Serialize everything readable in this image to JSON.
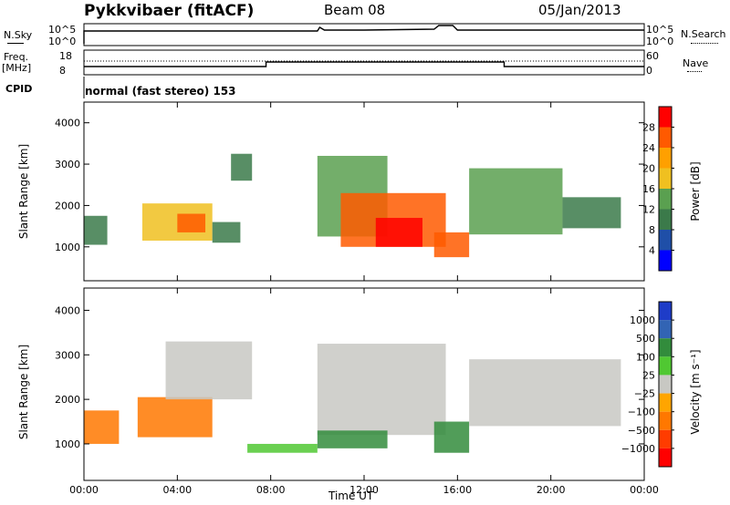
{
  "header": {
    "radar_title": "Pykkvibaer (fitACF)",
    "beam": "Beam 08",
    "date": "05/Jan/2013",
    "mode": "normal (fast stereo) 153"
  },
  "status_panels": {
    "nsky_label": "N.Sky",
    "nsky_ticks": [
      "10^5",
      "10^0"
    ],
    "nsearch_label": "N.Search",
    "nsearch_ticks": [
      "10^5",
      "10^0"
    ],
    "freq_label_line1": "Freq.",
    "freq_label_line2": "[MHz]",
    "freq_ticks": [
      "18",
      "8"
    ],
    "nave_label": "Nave",
    "nave_ticks": [
      "60",
      "0"
    ],
    "cpid_label": "CPID"
  },
  "colors": {
    "power_scale": [
      "#0000ff",
      "#1f4fa8",
      "#3b7a4a",
      "#5aa050",
      "#f0c020",
      "#ffa000",
      "#ff5a00",
      "#ff0000"
    ],
    "velocity_scale": [
      "#1e3cc8",
      "#3264b4",
      "#328c3c",
      "#50c832",
      "#c8c8c3",
      "#ffa500",
      "#ff7800",
      "#ff3c00",
      "#ff0000"
    ]
  },
  "chart_data": [
    {
      "type": "heatmap",
      "panel": "power",
      "ylabel": "Slant Range [km]",
      "xlabel": "",
      "ylim": [
        180,
        4500
      ],
      "x_ticks": [
        "00:00",
        "04:00",
        "08:00",
        "12:00",
        "16:00",
        "20:00",
        "00:00"
      ],
      "y_ticks": [
        1000,
        2000,
        3000,
        4000
      ],
      "colorbar": {
        "label": "Power [dB]",
        "range": [
          0,
          32
        ],
        "ticks": [
          4,
          8,
          12,
          16,
          20,
          24,
          28
        ]
      },
      "regions": [
        {
          "t_start": 0.0,
          "t_end": 1.0,
          "range_start": 1050,
          "range_end": 1750,
          "level": 8
        },
        {
          "t_start": 2.5,
          "t_end": 5.5,
          "range_start": 1150,
          "range_end": 2050,
          "level": 16
        },
        {
          "t_start": 4.0,
          "t_end": 5.2,
          "range_start": 1350,
          "range_end": 1800,
          "level": 24
        },
        {
          "t_start": 5.5,
          "t_end": 6.7,
          "range_start": 1100,
          "range_end": 1600,
          "level": 10
        },
        {
          "t_start": 6.3,
          "t_end": 7.2,
          "range_start": 2600,
          "range_end": 3250,
          "level": 10
        },
        {
          "t_start": 10.0,
          "t_end": 13.0,
          "range_start": 1250,
          "range_end": 3200,
          "level": 12
        },
        {
          "t_start": 11.0,
          "t_end": 15.5,
          "range_start": 1000,
          "range_end": 2300,
          "level": 24
        },
        {
          "t_start": 12.5,
          "t_end": 14.5,
          "range_start": 1000,
          "range_end": 1700,
          "level": 28
        },
        {
          "t_start": 15.0,
          "t_end": 16.5,
          "range_start": 750,
          "range_end": 1350,
          "level": 24
        },
        {
          "t_start": 16.5,
          "t_end": 20.5,
          "range_start": 1300,
          "range_end": 2900,
          "level": 14
        },
        {
          "t_start": 20.5,
          "t_end": 23.0,
          "range_start": 1450,
          "range_end": 2200,
          "level": 8
        }
      ]
    },
    {
      "type": "heatmap",
      "panel": "velocity",
      "ylabel": "Slant Range [km]",
      "xlabel": "Time UT",
      "ylim": [
        180,
        4500
      ],
      "x_ticks": [
        "00:00",
        "04:00",
        "08:00",
        "12:00",
        "16:00",
        "20:00",
        "00:00"
      ],
      "y_ticks": [
        1000,
        2000,
        3000,
        4000
      ],
      "colorbar": {
        "label": "Velocity [m s⁻¹]",
        "ticks": [
          "1000",
          "500",
          "100",
          "25",
          "−25",
          "−100",
          "−500",
          "−1000"
        ]
      },
      "regions": [
        {
          "t_start": 0.0,
          "t_end": 1.5,
          "range_start": 1000,
          "range_end": 1750,
          "velocity": -300
        },
        {
          "t_start": 2.3,
          "t_end": 5.5,
          "range_start": 1150,
          "range_end": 2050,
          "velocity": -300
        },
        {
          "t_start": 3.5,
          "t_end": 7.2,
          "range_start": 2000,
          "range_end": 3300,
          "velocity": 0
        },
        {
          "t_start": 7.0,
          "t_end": 10.0,
          "range_start": 800,
          "range_end": 1000,
          "velocity": 50
        },
        {
          "t_start": 10.0,
          "t_end": 15.5,
          "range_start": 1200,
          "range_end": 3250,
          "velocity": 0
        },
        {
          "t_start": 10.0,
          "t_end": 13.0,
          "range_start": 900,
          "range_end": 1300,
          "velocity": 100
        },
        {
          "t_start": 15.0,
          "t_end": 16.5,
          "range_start": 800,
          "range_end": 1500,
          "velocity": 100
        },
        {
          "t_start": 16.5,
          "t_end": 23.0,
          "range_start": 1400,
          "range_end": 2900,
          "velocity": 0
        }
      ]
    }
  ]
}
